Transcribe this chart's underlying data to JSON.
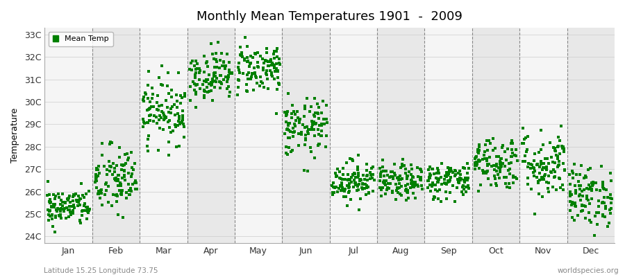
{
  "title": "Monthly Mean Temperatures 1901  -  2009",
  "ylabel": "Temperature",
  "ytick_labels": [
    "24C",
    "25C",
    "26C",
    "27C",
    "28C",
    "29C",
    "30C",
    "31C",
    "32C",
    "33C"
  ],
  "ytick_values": [
    24,
    25,
    26,
    27,
    28,
    29,
    30,
    31,
    32,
    33
  ],
  "ylim": [
    23.7,
    33.3
  ],
  "months": [
    "Jan",
    "Feb",
    "Mar",
    "Apr",
    "May",
    "Jun",
    "Jul",
    "Aug",
    "Sep",
    "Oct",
    "Nov",
    "Dec"
  ],
  "dot_color": "#008000",
  "bg_color_light": "#f5f5f5",
  "bg_color_dark": "#e8e8e8",
  "legend_label": "Mean Temp",
  "subtitle": "Latitude 15.25 Longitude 73.75",
  "watermark": "worldspecies.org",
  "n_years": 109,
  "seed": 42,
  "monthly_means": [
    25.3,
    26.5,
    29.6,
    31.2,
    31.5,
    28.8,
    26.5,
    26.4,
    26.5,
    27.3,
    27.2,
    25.8
  ],
  "monthly_stds": [
    0.42,
    0.78,
    0.72,
    0.55,
    0.58,
    0.65,
    0.45,
    0.4,
    0.42,
    0.6,
    0.78,
    0.68
  ]
}
